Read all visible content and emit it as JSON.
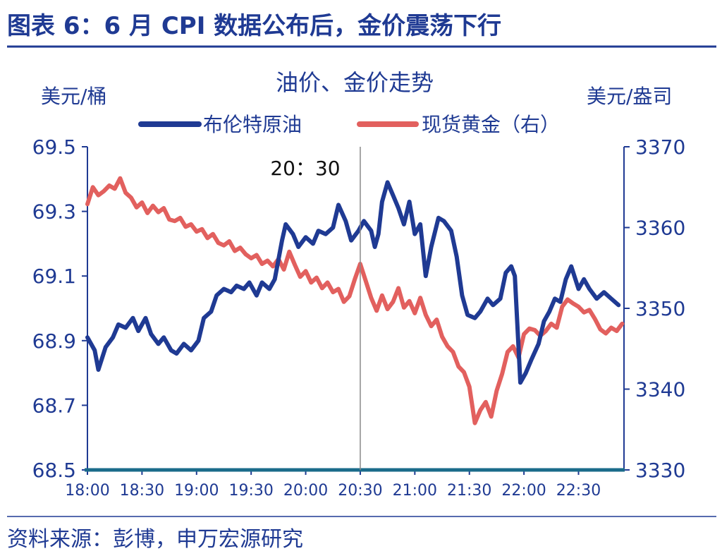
{
  "header": {
    "title": "图表 6：6 月 CPI 数据公布后，金价震荡下行",
    "title_color": "#1f3a93",
    "rule_color": "#1f3a93"
  },
  "footer": {
    "source": "资料来源：彭博，申万宏源研究"
  },
  "chart_data": {
    "type": "line",
    "title": "油价、金价走势",
    "ylabel_left": "美元/桶",
    "ylabel_right": "美元/盎司",
    "annotation": "20：30",
    "annotation_time": "20:30",
    "x_tick_labels": [
      "18:00",
      "18:30",
      "19:00",
      "19:30",
      "20:00",
      "20:30",
      "21:00",
      "21:30",
      "22:00",
      "22:30"
    ],
    "x_range": [
      "18:00",
      "22:55"
    ],
    "ylim_left": [
      68.5,
      69.5
    ],
    "ylim_right": [
      3330,
      3370
    ],
    "y_ticks_left": [
      "69.5",
      "69.3",
      "69.1",
      "68.9",
      "68.7",
      "68.5"
    ],
    "y_ticks_right": [
      "3370",
      "3360",
      "3350",
      "3340",
      "3330"
    ],
    "legend_position": "top-center",
    "grid": false,
    "series": [
      {
        "name": "布伦特原油",
        "axis": "left",
        "color": "#1f3a93",
        "points": [
          [
            "18:00",
            68.91
          ],
          [
            "18:04",
            68.87
          ],
          [
            "18:06",
            68.81
          ],
          [
            "18:10",
            68.88
          ],
          [
            "18:14",
            68.91
          ],
          [
            "18:17",
            68.95
          ],
          [
            "18:21",
            68.94
          ],
          [
            "18:25",
            68.97
          ],
          [
            "18:28",
            68.93
          ],
          [
            "18:32",
            68.97
          ],
          [
            "18:35",
            68.92
          ],
          [
            "18:39",
            68.89
          ],
          [
            "18:42",
            68.91
          ],
          [
            "18:46",
            68.87
          ],
          [
            "18:49",
            68.86
          ],
          [
            "18:53",
            68.89
          ],
          [
            "18:57",
            68.87
          ],
          [
            "19:01",
            68.9
          ],
          [
            "19:04",
            68.97
          ],
          [
            "19:08",
            68.99
          ],
          [
            "19:11",
            69.04
          ],
          [
            "19:15",
            69.06
          ],
          [
            "19:19",
            69.05
          ],
          [
            "19:22",
            69.07
          ],
          [
            "19:26",
            69.06
          ],
          [
            "19:29",
            69.08
          ],
          [
            "19:33",
            69.04
          ],
          [
            "19:36",
            69.08
          ],
          [
            "19:40",
            69.06
          ],
          [
            "19:43",
            69.09
          ],
          [
            "19:47",
            69.21
          ],
          [
            "19:49",
            69.26
          ],
          [
            "19:53",
            69.23
          ],
          [
            "19:56",
            69.19
          ],
          [
            "20:00",
            69.22
          ],
          [
            "20:04",
            69.2
          ],
          [
            "20:07",
            69.24
          ],
          [
            "20:11",
            69.23
          ],
          [
            "20:15",
            69.25
          ],
          [
            "20:18",
            69.32
          ],
          [
            "20:22",
            69.27
          ],
          [
            "20:25",
            69.21
          ],
          [
            "20:29",
            69.24
          ],
          [
            "20:32",
            69.27
          ],
          [
            "20:36",
            69.24
          ],
          [
            "20:38",
            69.19
          ],
          [
            "20:40",
            69.23
          ],
          [
            "20:42",
            69.33
          ],
          [
            "20:45",
            69.39
          ],
          [
            "20:48",
            69.35
          ],
          [
            "20:51",
            69.31
          ],
          [
            "20:54",
            69.26
          ],
          [
            "20:57",
            69.33
          ],
          [
            "21:00",
            69.23
          ],
          [
            "21:03",
            69.26
          ],
          [
            "21:06",
            69.1
          ],
          [
            "21:09",
            69.19
          ],
          [
            "21:13",
            69.28
          ],
          [
            "21:16",
            69.27
          ],
          [
            "21:20",
            69.24
          ],
          [
            "21:23",
            69.16
          ],
          [
            "21:26",
            69.04
          ],
          [
            "21:29",
            68.98
          ],
          [
            "21:33",
            68.97
          ],
          [
            "21:36",
            68.99
          ],
          [
            "21:40",
            69.03
          ],
          [
            "21:43",
            69.01
          ],
          [
            "21:47",
            69.03
          ],
          [
            "21:50",
            69.11
          ],
          [
            "21:53",
            69.13
          ],
          [
            "21:55",
            69.1
          ],
          [
            "21:58",
            68.77
          ],
          [
            "22:01",
            68.8
          ],
          [
            "22:04",
            68.84
          ],
          [
            "22:08",
            68.89
          ],
          [
            "22:11",
            68.96
          ],
          [
            "22:14",
            68.99
          ],
          [
            "22:17",
            69.03
          ],
          [
            "22:20",
            69.02
          ],
          [
            "22:23",
            69.09
          ],
          [
            "22:26",
            69.13
          ],
          [
            "22:30",
            69.06
          ],
          [
            "22:33",
            69.09
          ],
          [
            "22:36",
            69.06
          ],
          [
            "22:40",
            69.03
          ],
          [
            "22:44",
            69.05
          ],
          [
            "22:48",
            69.03
          ],
          [
            "22:52",
            69.01
          ]
        ]
      },
      {
        "name": "现货黄金（右）",
        "axis": "right",
        "color": "#e2605e",
        "points": [
          [
            "18:00",
            3362.9
          ],
          [
            "18:03",
            3365.0
          ],
          [
            "18:06",
            3364.0
          ],
          [
            "18:09",
            3364.5
          ],
          [
            "18:12",
            3365.2
          ],
          [
            "18:15",
            3364.8
          ],
          [
            "18:18",
            3366.1
          ],
          [
            "18:21",
            3364.3
          ],
          [
            "18:24",
            3363.7
          ],
          [
            "18:27",
            3362.5
          ],
          [
            "18:30",
            3363.1
          ],
          [
            "18:33",
            3361.8
          ],
          [
            "18:36",
            3362.7
          ],
          [
            "18:39",
            3361.9
          ],
          [
            "18:42",
            3362.4
          ],
          [
            "18:45",
            3361.0
          ],
          [
            "18:48",
            3360.8
          ],
          [
            "18:51",
            3361.2
          ],
          [
            "18:54",
            3360.1
          ],
          [
            "18:57",
            3360.4
          ],
          [
            "19:00",
            3359.5
          ],
          [
            "19:03",
            3359.8
          ],
          [
            "19:06",
            3358.7
          ],
          [
            "19:09",
            3359.2
          ],
          [
            "19:12",
            3358.1
          ],
          [
            "19:15",
            3357.8
          ],
          [
            "19:18",
            3358.3
          ],
          [
            "19:21",
            3357.1
          ],
          [
            "19:24",
            3357.5
          ],
          [
            "19:27",
            3356.7
          ],
          [
            "19:30",
            3356.2
          ],
          [
            "19:33",
            3356.6
          ],
          [
            "19:36",
            3355.5
          ],
          [
            "19:39",
            3355.9
          ],
          [
            "19:42",
            3355.2
          ],
          [
            "19:45",
            3356.1
          ],
          [
            "19:48",
            3354.8
          ],
          [
            "19:51",
            3357.0
          ],
          [
            "19:54",
            3355.4
          ],
          [
            "19:57",
            3353.9
          ],
          [
            "20:00",
            3354.6
          ],
          [
            "20:03",
            3353.2
          ],
          [
            "20:06",
            3353.8
          ],
          [
            "20:09",
            3352.5
          ],
          [
            "20:12",
            3353.2
          ],
          [
            "20:15",
            3352.0
          ],
          [
            "20:18",
            3352.4
          ],
          [
            "20:21",
            3350.8
          ],
          [
            "20:24",
            3351.5
          ],
          [
            "20:27",
            3353.6
          ],
          [
            "20:30",
            3355.5
          ],
          [
            "20:33",
            3353.4
          ],
          [
            "20:36",
            3351.3
          ],
          [
            "20:39",
            3349.7
          ],
          [
            "20:42",
            3351.6
          ],
          [
            "20:45",
            3349.9
          ],
          [
            "20:48",
            3350.8
          ],
          [
            "20:51",
            3352.5
          ],
          [
            "20:54",
            3350.1
          ],
          [
            "20:57",
            3350.9
          ],
          [
            "21:00",
            3349.4
          ],
          [
            "21:03",
            3351.3
          ],
          [
            "21:06",
            3349.2
          ],
          [
            "21:09",
            3347.8
          ],
          [
            "21:12",
            3348.6
          ],
          [
            "21:15",
            3346.5
          ],
          [
            "21:18",
            3345.3
          ],
          [
            "21:21",
            3344.6
          ],
          [
            "21:24",
            3342.8
          ],
          [
            "21:27",
            3342.1
          ],
          [
            "21:30",
            3340.3
          ],
          [
            "21:33",
            3335.8
          ],
          [
            "21:36",
            3337.4
          ],
          [
            "21:39",
            3338.4
          ],
          [
            "21:42",
            3336.6
          ],
          [
            "21:45",
            3339.8
          ],
          [
            "21:48",
            3341.9
          ],
          [
            "21:51",
            3344.6
          ],
          [
            "21:54",
            3345.3
          ],
          [
            "21:57",
            3343.9
          ],
          [
            "22:00",
            3346.8
          ],
          [
            "22:03",
            3347.5
          ],
          [
            "22:06",
            3347.3
          ],
          [
            "22:09",
            3346.6
          ],
          [
            "22:12",
            3347.2
          ],
          [
            "22:15",
            3348.1
          ],
          [
            "22:18",
            3347.6
          ],
          [
            "22:21",
            3350.2
          ],
          [
            "22:24",
            3351.1
          ],
          [
            "22:27",
            3350.6
          ],
          [
            "22:30",
            3350.2
          ],
          [
            "22:33",
            3349.5
          ],
          [
            "22:36",
            3349.8
          ],
          [
            "22:39",
            3348.7
          ],
          [
            "22:42",
            3347.4
          ],
          [
            "22:45",
            3346.9
          ],
          [
            "22:48",
            3347.6
          ],
          [
            "22:51",
            3347.2
          ],
          [
            "22:54",
            3348.1
          ]
        ]
      }
    ]
  }
}
